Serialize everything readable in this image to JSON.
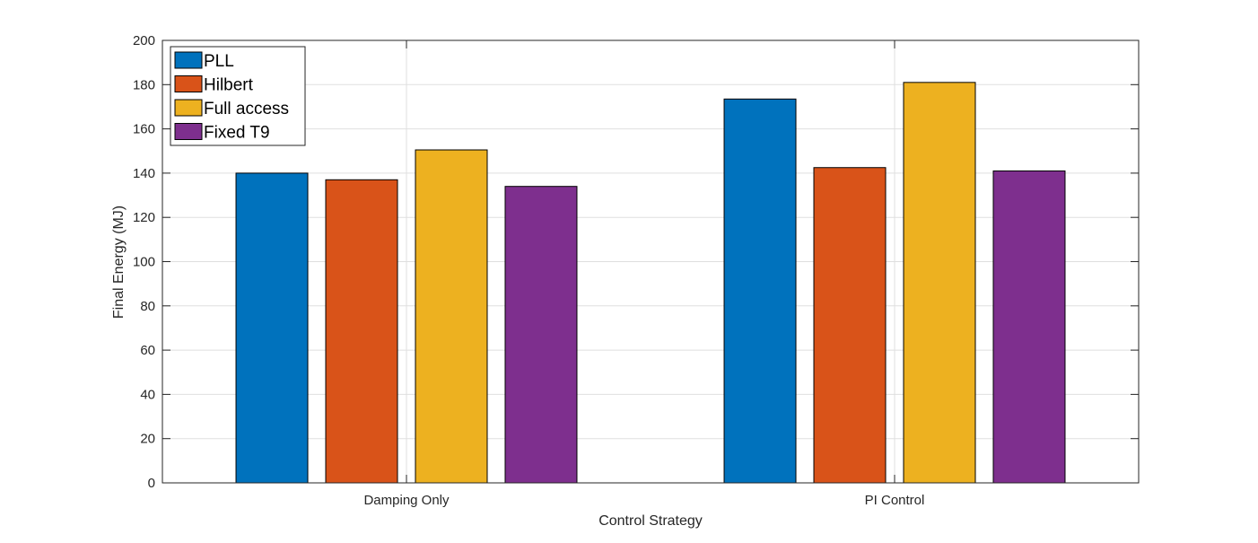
{
  "chart_data": {
    "type": "bar",
    "title": "",
    "xlabel": "Control Strategy",
    "ylabel": "Final Energy (MJ)",
    "categories": [
      "Damping Only",
      "PI Control"
    ],
    "ylim": [
      0,
      200
    ],
    "yticks": [
      "0",
      "20",
      "40",
      "60",
      "80",
      "100",
      "120",
      "140",
      "160",
      "180",
      "200"
    ],
    "grid": true,
    "legend_position": "top-left",
    "series": [
      {
        "name": "PLL",
        "color": "#0072BD",
        "values": [
          140,
          173.5
        ]
      },
      {
        "name": "Hilbert",
        "color": "#D95319",
        "values": [
          137,
          142.5
        ]
      },
      {
        "name": "Full access",
        "color": "#EDB120",
        "values": [
          150.5,
          181
        ]
      },
      {
        "name": "Fixed T9",
        "color": "#7E2F8E",
        "values": [
          134,
          141
        ]
      }
    ]
  }
}
